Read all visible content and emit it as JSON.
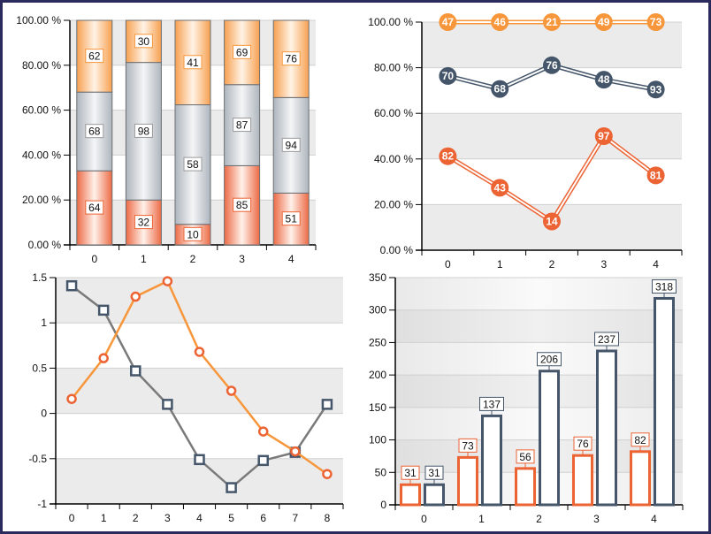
{
  "colors": {
    "orange": "#f7963a",
    "red": "#ec6334",
    "slate": "#45566a",
    "gray": "#bfc5cb",
    "grid_band": "#ebebeb",
    "frame": "#2b2a5c"
  },
  "chart_data": [
    {
      "type": "bar",
      "stacking": "percent",
      "categories": [
        "0",
        "1",
        "2",
        "3",
        "4"
      ],
      "y_ticks": [
        "0.00 %",
        "20.00 %",
        "40.00 %",
        "60.00 %",
        "80.00 %",
        "100.00 %"
      ],
      "ylim": [
        0,
        100
      ],
      "grid": true,
      "series": [
        {
          "color": "#ec6334",
          "values": [
            64,
            32,
            10,
            85,
            51
          ]
        },
        {
          "color": "#bfc5cb",
          "values": [
            68,
            98,
            58,
            87,
            94
          ]
        },
        {
          "color": "#f7963a",
          "values": [
            62,
            30,
            41,
            69,
            76
          ]
        }
      ]
    },
    {
      "type": "line",
      "stacking": "percent",
      "categories": [
        "0",
        "1",
        "2",
        "3",
        "4"
      ],
      "y_ticks": [
        "0.00 %",
        "20.00 %",
        "40.00 %",
        "60.00 %",
        "80.00 %",
        "100.00 %"
      ],
      "ylim": [
        0,
        100
      ],
      "grid": true,
      "series": [
        {
          "color": "#ec6334",
          "values": [
            82,
            43,
            14,
            97,
            81
          ]
        },
        {
          "color": "#45566a",
          "values": [
            70,
            68,
            76,
            48,
            93
          ]
        },
        {
          "color": "#f7963a",
          "values": [
            47,
            46,
            21,
            49,
            73
          ]
        }
      ]
    },
    {
      "type": "line",
      "categories": [
        "0",
        "1",
        "2",
        "3",
        "4",
        "5",
        "6",
        "7",
        "8"
      ],
      "y_ticks": [
        "-1",
        "-0.5",
        "0",
        "0.5",
        "1",
        "1.5"
      ],
      "ylim": [
        -1,
        1.5
      ],
      "grid": true,
      "series": [
        {
          "color": "#7a7a7a",
          "marker": "square",
          "marker_color": "#45566a",
          "values": [
            1.41,
            1.14,
            0.47,
            0.1,
            -0.51,
            -0.82,
            -0.52,
            -0.43,
            0.1
          ]
        },
        {
          "color": "#f7963a",
          "marker": "circle",
          "marker_color": "#ec6334",
          "values": [
            0.16,
            0.61,
            1.29,
            1.46,
            0.68,
            0.25,
            -0.2,
            -0.42,
            -0.67
          ]
        }
      ]
    },
    {
      "type": "bar",
      "categories": [
        "0",
        "1",
        "2",
        "3",
        "4"
      ],
      "y_ticks": [
        "0",
        "50",
        "100",
        "150",
        "200",
        "250",
        "300",
        "350"
      ],
      "ylim": [
        0,
        350
      ],
      "grid": true,
      "series": [
        {
          "color": "#ec6334",
          "values": [
            31,
            73,
            56,
            76,
            82
          ]
        },
        {
          "color": "#45566a",
          "values": [
            31,
            137,
            206,
            237,
            318
          ]
        }
      ]
    }
  ]
}
